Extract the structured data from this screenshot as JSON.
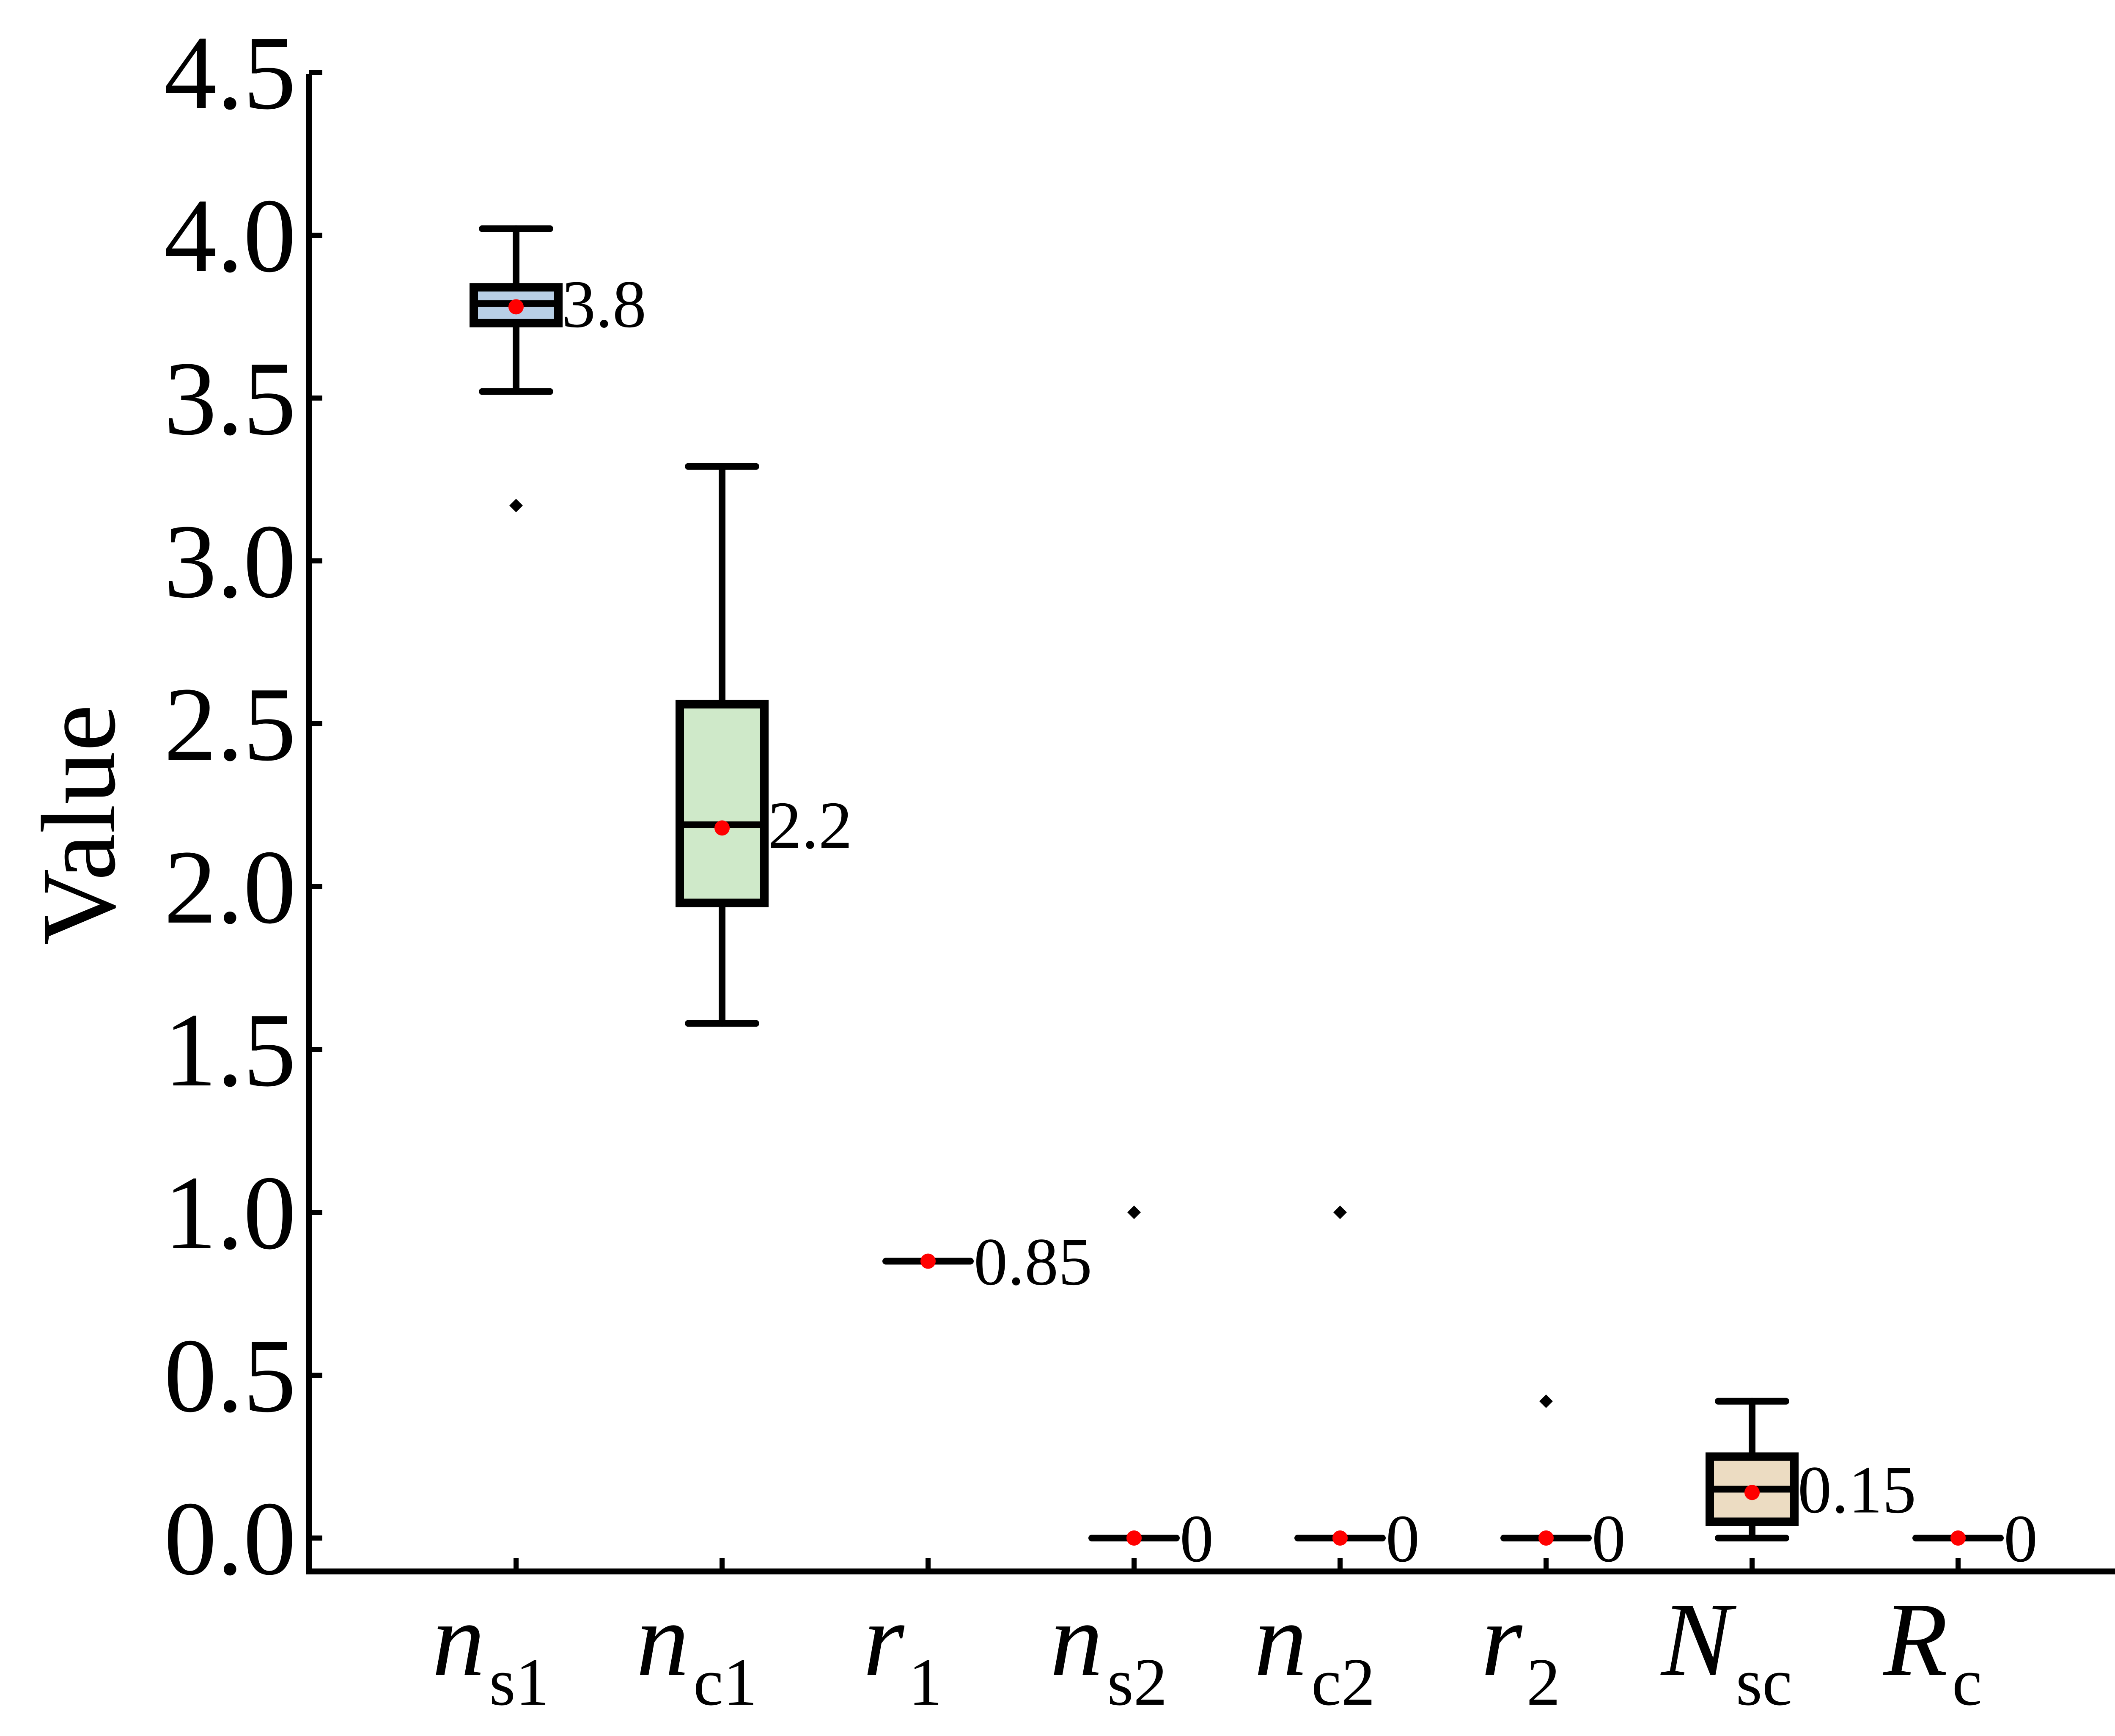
{
  "chart_data": {
    "type": "box",
    "title": "",
    "xlabel": "",
    "ylabel": "Value",
    "ylim": [
      -0.1,
      4.5
    ],
    "yticks": [
      "0.0",
      "0.5",
      "1.0",
      "1.5",
      "2.0",
      "2.5",
      "3.0",
      "3.5",
      "4.0",
      "4.5"
    ],
    "categories": [
      {
        "main": "n",
        "sub": "s1"
      },
      {
        "main": "n",
        "sub": "c1"
      },
      {
        "main": "r",
        "sub": "1"
      },
      {
        "main": "n",
        "sub": "s2"
      },
      {
        "main": "n",
        "sub": "c2"
      },
      {
        "main": "r",
        "sub": "2"
      },
      {
        "main": "N",
        "sub": "sc"
      },
      {
        "main": "R",
        "sub": "c"
      }
    ],
    "boxes": [
      {
        "whisker_low": 3.52,
        "q1": 3.73,
        "median": 3.79,
        "q3": 3.84,
        "whisker_high": 4.02,
        "mean": 3.78,
        "outliers": [
          3.17
        ],
        "label": "3.8",
        "color": "#b8cfe6"
      },
      {
        "whisker_low": 1.58,
        "q1": 1.95,
        "median": 2.19,
        "q3": 2.56,
        "whisker_high": 3.29,
        "mean": 2.18,
        "outliers": [],
        "label": "2.2",
        "color": "#cfe9c9"
      },
      {
        "whisker_low": 0.85,
        "q1": 0.85,
        "median": 0.85,
        "q3": 0.85,
        "whisker_high": 0.85,
        "mean": 0.85,
        "outliers": [],
        "label": "0.85",
        "color": "#ffffff"
      },
      {
        "whisker_low": 0,
        "q1": 0,
        "median": 0,
        "q3": 0,
        "whisker_high": 0,
        "mean": 0,
        "outliers": [
          1.0
        ],
        "label": "0",
        "color": "#ffffff"
      },
      {
        "whisker_low": 0,
        "q1": 0,
        "median": 0,
        "q3": 0,
        "whisker_high": 0,
        "mean": 0,
        "outliers": [
          1.0
        ],
        "label": "0",
        "color": "#ffffff"
      },
      {
        "whisker_low": 0,
        "q1": 0,
        "median": 0,
        "q3": 0,
        "whisker_high": 0,
        "mean": 0,
        "outliers": [
          0.42
        ],
        "label": "0",
        "color": "#ffffff"
      },
      {
        "whisker_low": 0.0,
        "q1": 0.05,
        "median": 0.15,
        "q3": 0.25,
        "whisker_high": 0.42,
        "mean": 0.14,
        "outliers": [],
        "label": "0.15",
        "color": "#ecdcc2"
      },
      {
        "whisker_low": 0,
        "q1": 0,
        "median": 0,
        "q3": 0,
        "whisker_high": 0,
        "mean": 0,
        "outliers": [],
        "label": "0",
        "color": "#ffffff"
      }
    ],
    "mean_color": "#ff0000",
    "grid": false
  }
}
